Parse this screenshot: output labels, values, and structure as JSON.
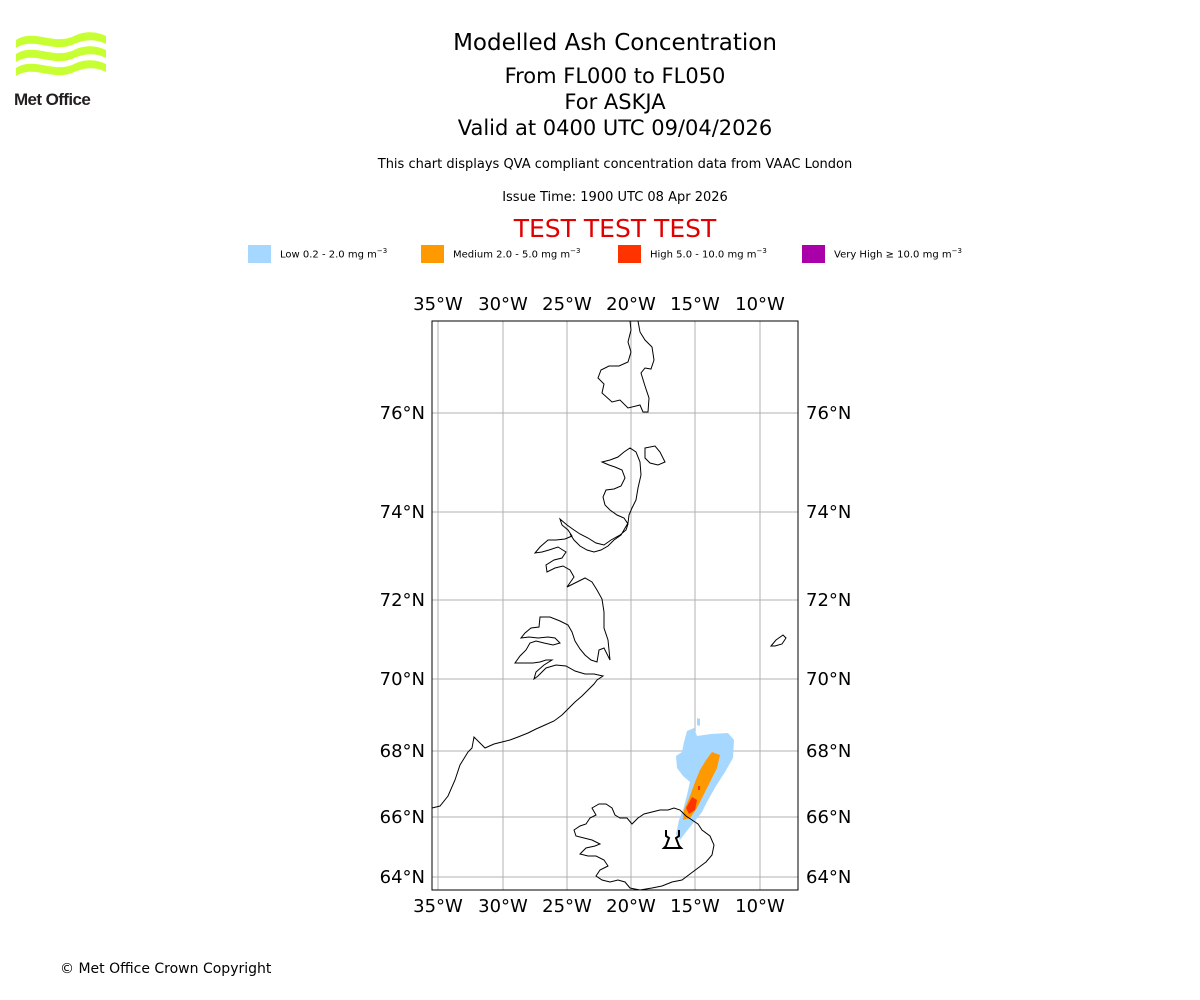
{
  "logo": {
    "text": "Met Office",
    "icon": "met-office-wave-logo",
    "color": "#c8ff32"
  },
  "header": {
    "title": "Modelled Ash Concentration",
    "levels": "From FL000 to FL050",
    "volcano": "For ASKJA",
    "valid": "Valid at 0400 UTC 09/04/2026",
    "note": "This chart displays QVA compliant concentration data from VAAC London",
    "issue_time": "Issue Time: 1900 UTC 08 Apr 2026",
    "test_banner": "TEST TEST TEST"
  },
  "legend": [
    {
      "label": "Low 0.2 - 2.0 mg m",
      "unit_exp": "−3",
      "color": "#a6d8ff"
    },
    {
      "label": "Medium 2.0 - 5.0 mg m",
      "unit_exp": "−3",
      "color": "#ff9900"
    },
    {
      "label": "High 5.0 - 10.0 mg m",
      "unit_exp": "−3",
      "color": "#ff3300"
    },
    {
      "label": "Very High  ≥  10.0 mg m",
      "unit_exp": "−3",
      "color": "#aa00aa"
    }
  ],
  "map": {
    "lon_ticks": [
      "35°W",
      "30°W",
      "25°W",
      "20°W",
      "15°W",
      "10°W"
    ],
    "lat_ticks": [
      "76°N",
      "74°N",
      "72°N",
      "70°N",
      "68°N",
      "66°N",
      "64°N"
    ],
    "volcano_marker": "volcano-icon",
    "coast_color": "#000000",
    "grid_color": "#b0b0b0"
  },
  "footer": {
    "copyright": "© Met Office Crown Copyright"
  }
}
